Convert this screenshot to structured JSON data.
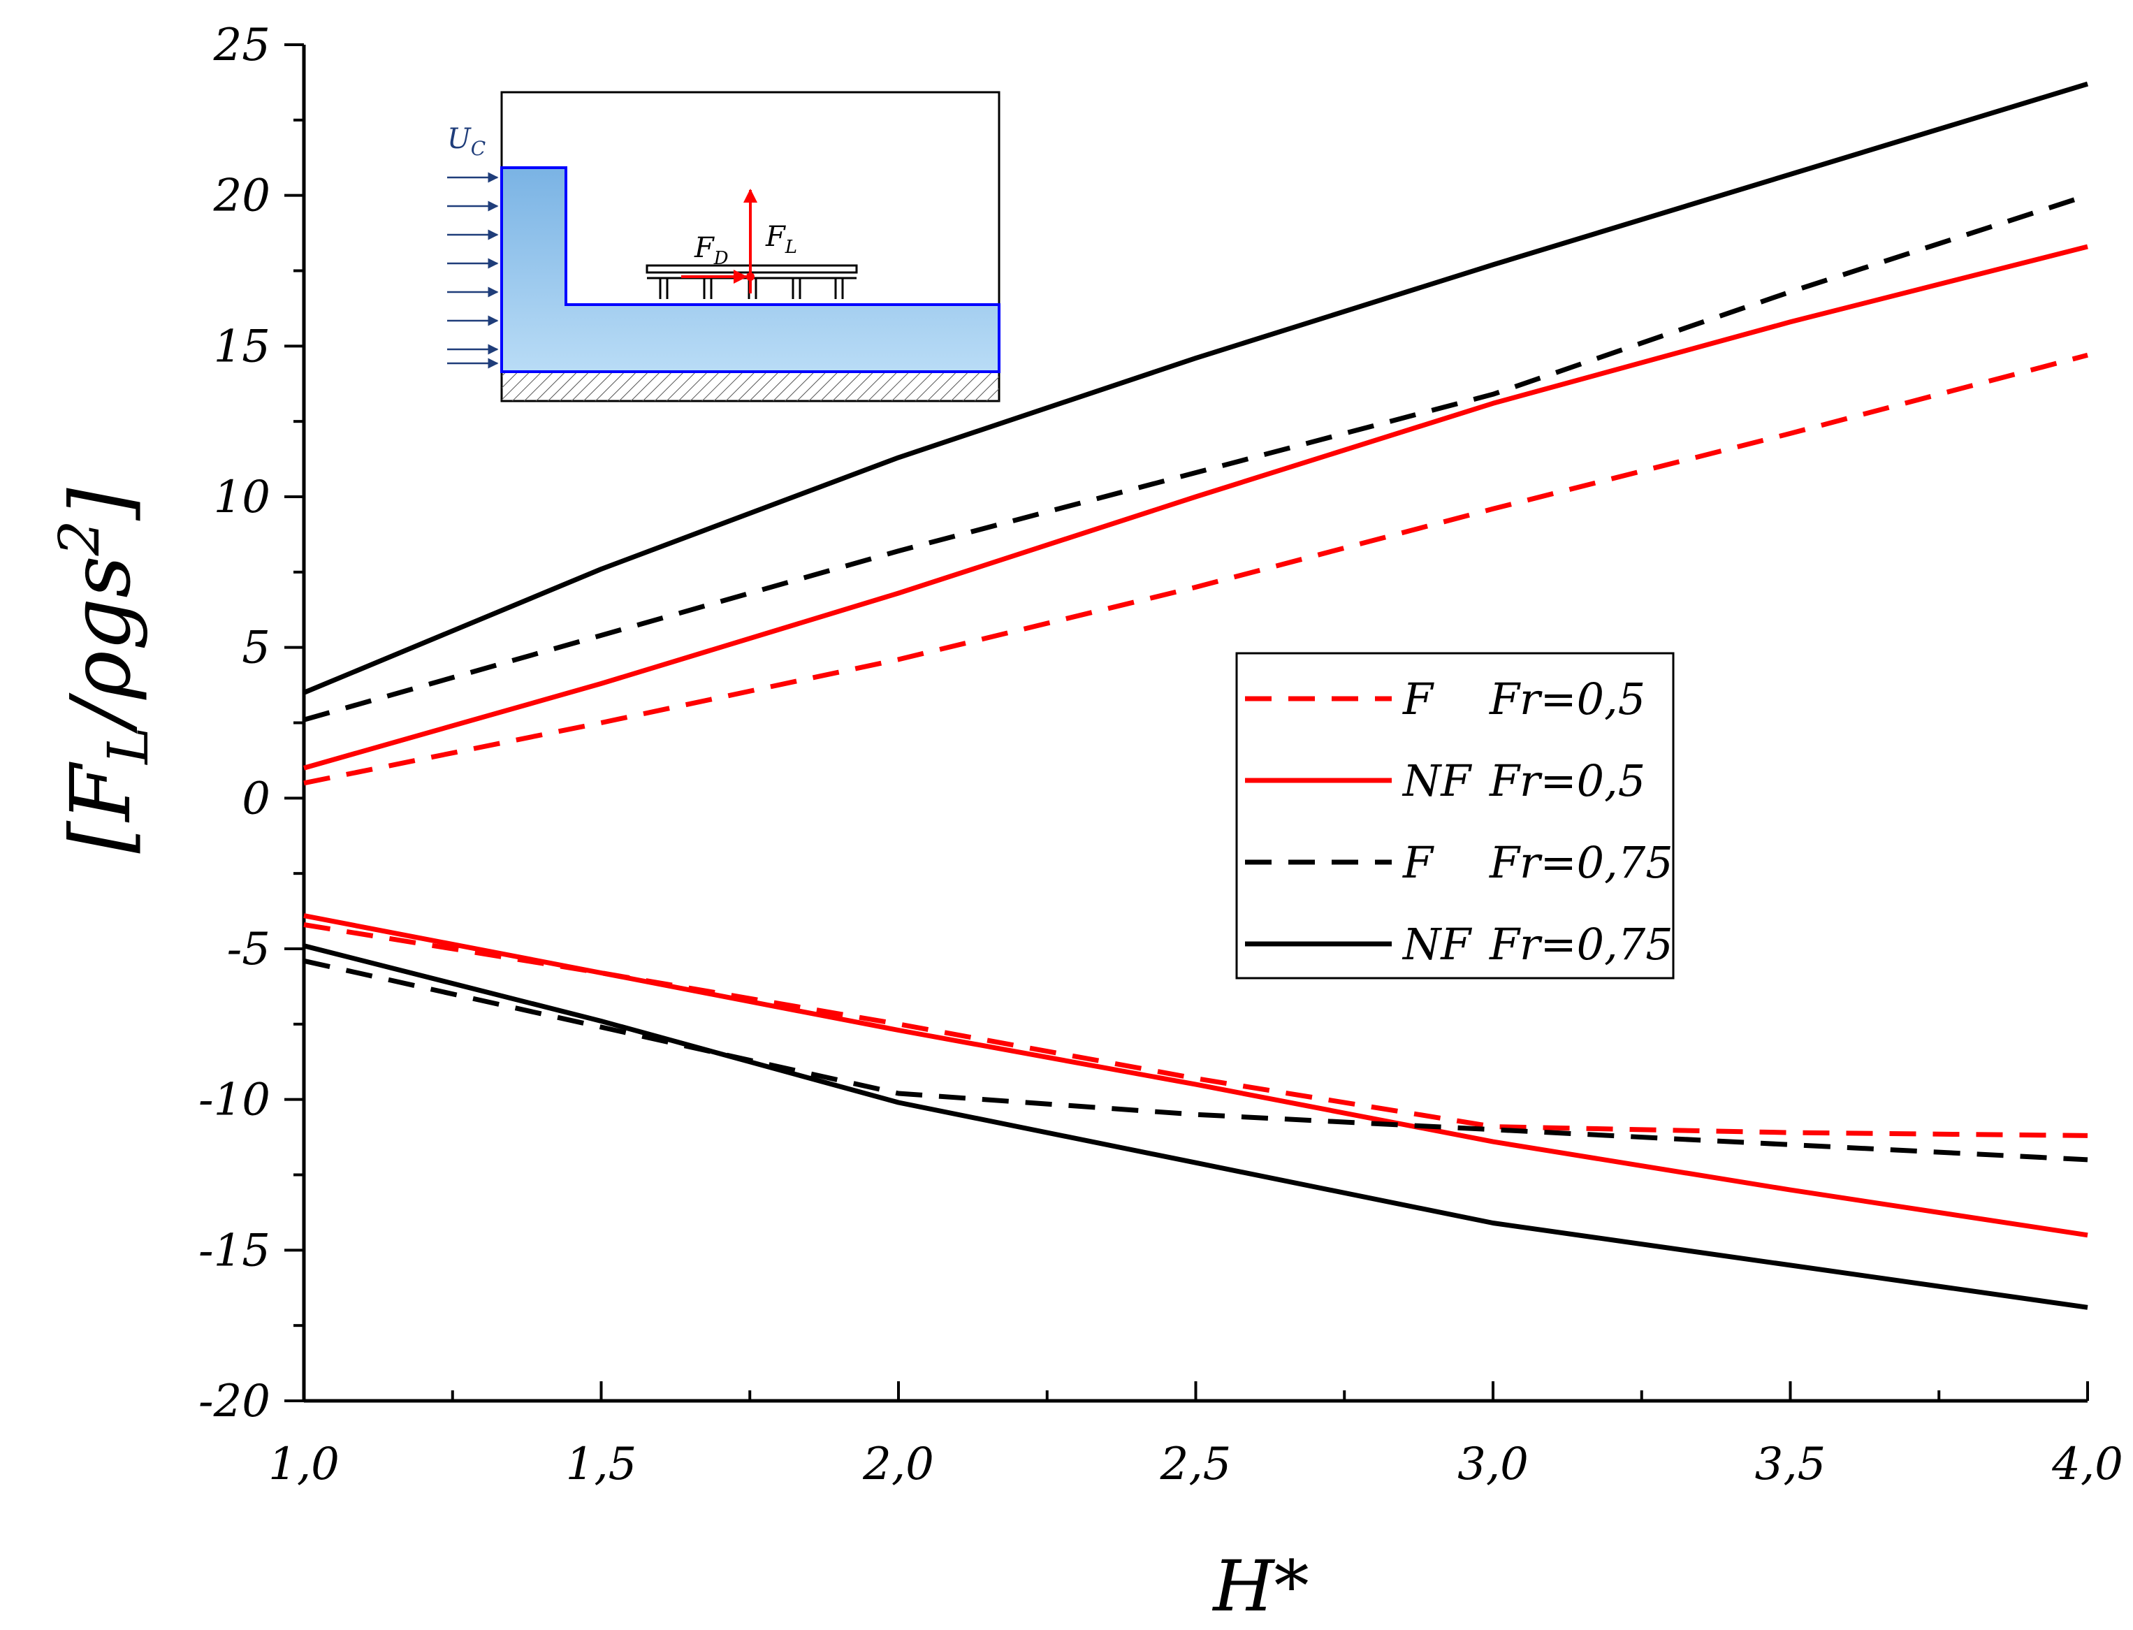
{
  "chart_data": {
    "type": "line",
    "xlabel": "H*",
    "ylabel": {
      "prefix": "[F",
      "sub": "L",
      "mid": "/ρgs",
      "sup": "2",
      "suffix": "]"
    },
    "xlim": [
      1.0,
      4.0
    ],
    "ylim": [
      -20,
      25
    ],
    "x_ticks": [
      {
        "value": 1.0,
        "label": "1,0"
      },
      {
        "value": 1.5,
        "label": "1,5"
      },
      {
        "value": 2.0,
        "label": "2,0"
      },
      {
        "value": 2.5,
        "label": "2,5"
      },
      {
        "value": 3.0,
        "label": "3,0"
      },
      {
        "value": 3.5,
        "label": "3,5"
      },
      {
        "value": 4.0,
        "label": "4,0"
      }
    ],
    "y_ticks": [
      {
        "value": 25,
        "label": "25"
      },
      {
        "value": 20,
        "label": "20"
      },
      {
        "value": 15,
        "label": "15"
      },
      {
        "value": 10,
        "label": "10"
      },
      {
        "value": 5,
        "label": "5"
      },
      {
        "value": 0,
        "label": "0"
      },
      {
        "value": -5,
        "label": "-5"
      },
      {
        "value": -10,
        "label": "-10"
      },
      {
        "value": -15,
        "label": "-15"
      },
      {
        "value": -20,
        "label": "-20"
      }
    ],
    "series": [
      {
        "name": "F_Fr05_upper",
        "legend": "F",
        "fr": "Fr=0,5",
        "color": "#ff0000",
        "dash": true,
        "show_in_legend": true,
        "x": [
          1.0,
          1.5,
          2.0,
          2.5,
          3.0,
          3.5,
          4.0
        ],
        "y": [
          0.5,
          2.5,
          4.6,
          7.0,
          9.6,
          12.1,
          14.7
        ]
      },
      {
        "name": "NF_Fr05_upper",
        "legend": "NF",
        "fr": "Fr=0,5",
        "color": "#ff0000",
        "dash": false,
        "show_in_legend": true,
        "x": [
          1.0,
          1.5,
          2.0,
          2.5,
          3.0,
          3.5,
          4.0
        ],
        "y": [
          1.0,
          3.8,
          6.8,
          10.0,
          13.1,
          15.8,
          18.3
        ]
      },
      {
        "name": "F_Fr075_upper",
        "legend": "F",
        "fr": "Fr=0,75",
        "color": "#000000",
        "dash": true,
        "show_in_legend": true,
        "x": [
          1.0,
          1.5,
          2.0,
          2.5,
          3.0,
          3.5,
          4.0
        ],
        "y": [
          2.6,
          5.4,
          8.2,
          10.8,
          13.4,
          16.8,
          20.0
        ]
      },
      {
        "name": "NF_Fr075_upper",
        "legend": "NF",
        "fr": "Fr=0,75",
        "color": "#000000",
        "dash": false,
        "show_in_legend": true,
        "x": [
          1.0,
          1.5,
          2.0,
          2.5,
          3.0,
          3.5,
          4.0
        ],
        "y": [
          3.5,
          7.6,
          11.3,
          14.6,
          17.7,
          20.7,
          23.7
        ]
      },
      {
        "name": "F_Fr05_lower",
        "legend": "F",
        "fr": "Fr=0,5",
        "color": "#ff0000",
        "dash": true,
        "show_in_legend": false,
        "x": [
          1.0,
          1.5,
          2.0,
          2.5,
          3.0,
          3.5,
          4.0
        ],
        "y": [
          -4.2,
          -5.8,
          -7.5,
          -9.3,
          -10.9,
          -11.1,
          -11.2
        ]
      },
      {
        "name": "NF_Fr05_lower",
        "legend": "NF",
        "fr": "Fr=0,5",
        "color": "#ff0000",
        "dash": false,
        "show_in_legend": false,
        "x": [
          1.0,
          1.5,
          2.0,
          2.5,
          3.0,
          3.5,
          4.0
        ],
        "y": [
          -3.9,
          -5.8,
          -7.7,
          -9.5,
          -11.4,
          -13.0,
          -14.5
        ]
      },
      {
        "name": "F_Fr075_lower",
        "legend": "F",
        "fr": "Fr=0,75",
        "color": "#000000",
        "dash": true,
        "show_in_legend": false,
        "x": [
          1.0,
          1.5,
          2.0,
          2.5,
          3.0,
          3.5,
          4.0
        ],
        "y": [
          -5.4,
          -7.6,
          -9.8,
          -10.5,
          -11.0,
          -11.5,
          -12.0
        ]
      },
      {
        "name": "NF_Fr075_lower",
        "legend": "NF",
        "fr": "Fr=0,75",
        "color": "#000000",
        "dash": false,
        "show_in_legend": false,
        "x": [
          1.0,
          1.5,
          2.0,
          2.5,
          3.0,
          3.5,
          4.0
        ],
        "y": [
          -4.9,
          -7.4,
          -10.1,
          -12.1,
          -14.1,
          -15.5,
          -16.9
        ]
      }
    ],
    "inset": {
      "uc_label": "U",
      "uc_sub": "C",
      "fd_label": "F",
      "fd_sub": "D",
      "fl_label": "F",
      "fl_sub": "L"
    }
  }
}
